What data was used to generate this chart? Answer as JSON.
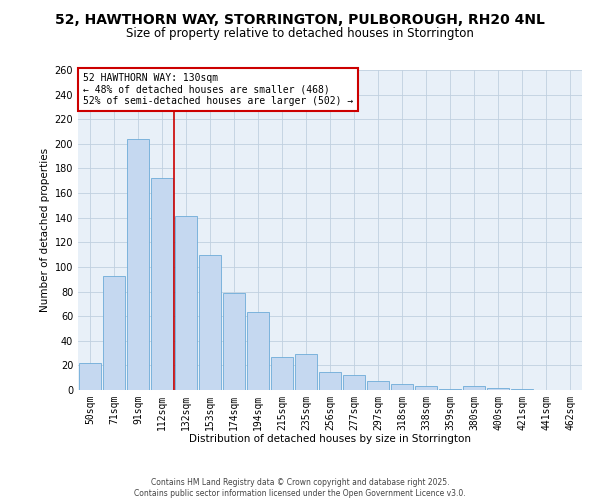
{
  "title": "52, HAWTHORN WAY, STORRINGTON, PULBOROUGH, RH20 4NL",
  "subtitle": "Size of property relative to detached houses in Storrington",
  "xlabel": "Distribution of detached houses by size in Storrington",
  "ylabel": "Number of detached properties",
  "categories": [
    "50sqm",
    "71sqm",
    "91sqm",
    "112sqm",
    "132sqm",
    "153sqm",
    "174sqm",
    "194sqm",
    "215sqm",
    "235sqm",
    "256sqm",
    "277sqm",
    "297sqm",
    "318sqm",
    "338sqm",
    "359sqm",
    "380sqm",
    "400sqm",
    "421sqm",
    "441sqm",
    "462sqm"
  ],
  "values": [
    22,
    93,
    204,
    172,
    141,
    110,
    79,
    63,
    27,
    29,
    15,
    12,
    7,
    5,
    3,
    1,
    3,
    2,
    1,
    0,
    0
  ],
  "bar_color": "#c5d8f0",
  "bar_edge_color": "#6dacd8",
  "ylim": [
    0,
    260
  ],
  "yticks": [
    0,
    20,
    40,
    60,
    80,
    100,
    120,
    140,
    160,
    180,
    200,
    220,
    240,
    260
  ],
  "vline_index": 4,
  "vline_color": "#cc0000",
  "annotation_title": "52 HAWTHORN WAY: 130sqm",
  "annotation_line1": "← 48% of detached houses are smaller (468)",
  "annotation_line2": "52% of semi-detached houses are larger (502) →",
  "annotation_box_color": "#ffffff",
  "annotation_box_edge": "#cc0000",
  "footer1": "Contains HM Land Registry data © Crown copyright and database right 2025.",
  "footer2": "Contains public sector information licensed under the Open Government Licence v3.0.",
  "background_color": "#ffffff",
  "plot_bg_color": "#e8f0f8",
  "grid_color": "#c0d0e0",
  "title_fontsize": 10,
  "subtitle_fontsize": 8.5,
  "axis_label_fontsize": 7.5,
  "tick_fontsize": 7,
  "annotation_fontsize": 7,
  "footer_fontsize": 5.5
}
